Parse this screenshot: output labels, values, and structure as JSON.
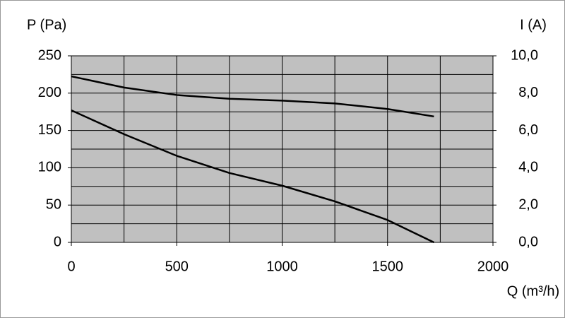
{
  "chart_data": {
    "type": "line",
    "y_label": "P (Pa)",
    "y2_label": "I (A)",
    "x_label": "Q (m³/h)",
    "x": [
      0,
      250,
      500,
      750,
      1000,
      1250,
      1500,
      1720
    ],
    "series": [
      {
        "color": "#000000",
        "values": [
          177,
          145,
          116,
          93,
          76,
          55,
          30,
          0
        ]
      },
      {
        "color": "#000000",
        "axis": "y2",
        "values": [
          8.9,
          8.3,
          7.9,
          7.7,
          7.6,
          7.45,
          7.15,
          6.75
        ]
      }
    ],
    "xlim": [
      0,
      2000
    ],
    "xticks": [
      0,
      500,
      1000,
      1500,
      2000
    ],
    "xminorticks": [
      250,
      750,
      1250,
      1750
    ],
    "ylim": [
      0,
      250
    ],
    "yticks": [
      0,
      50,
      100,
      150,
      200,
      250
    ],
    "yminorticks": [
      25,
      75,
      125,
      175,
      225
    ],
    "y2lim": [
      0,
      10
    ],
    "y2ticks": [
      {
        "value": 0,
        "label": "0,0"
      },
      {
        "value": 2,
        "label": "2,0"
      },
      {
        "value": 4,
        "label": "4,0"
      },
      {
        "value": 6,
        "label": "6,0"
      },
      {
        "value": 8,
        "label": "8,0"
      },
      {
        "value": 10,
        "label": "10,0"
      }
    ],
    "grid": true,
    "plot_background": "#c0c0c0"
  }
}
